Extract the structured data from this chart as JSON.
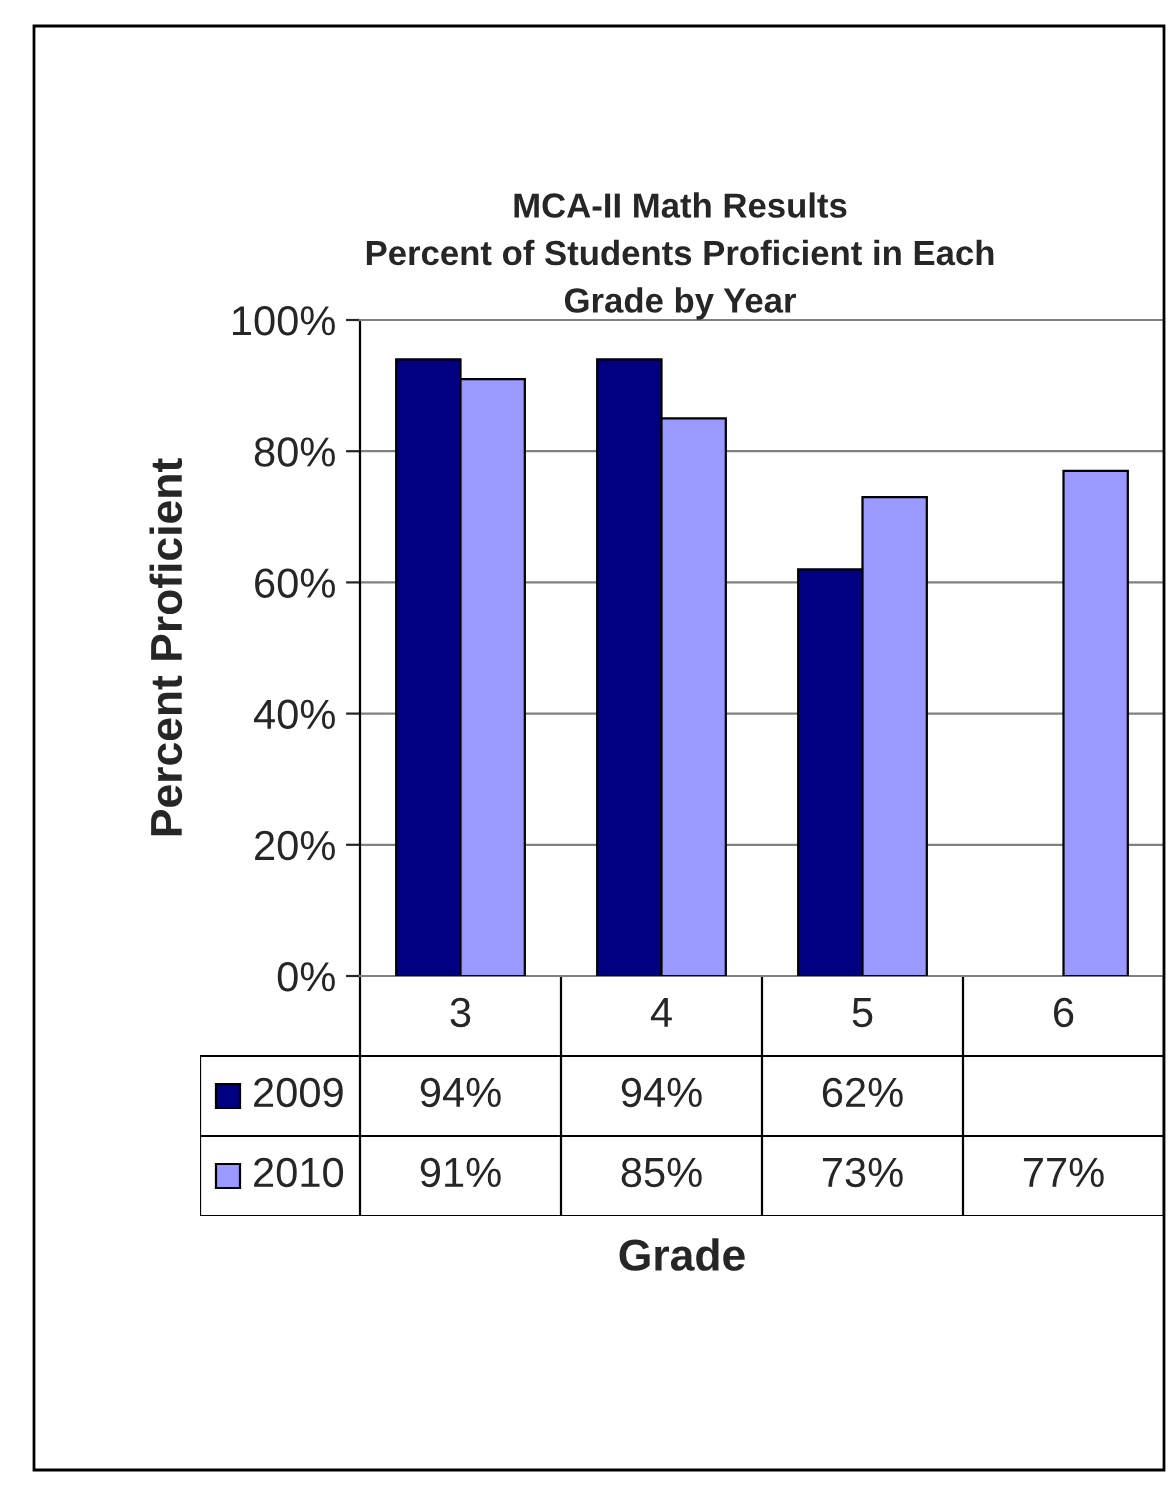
{
  "chart_data": {
    "type": "bar",
    "title": "MCA-II Math Results\nPercent of Students Proficient in Each\nGrade by Year",
    "xlabel": "Grade",
    "ylabel": "Percent Proficient",
    "categories": [
      "3",
      "4",
      "5",
      "6"
    ],
    "series": [
      {
        "name": "2009",
        "color": "#000080",
        "values": [
          94,
          94,
          62,
          null
        ],
        "value_labels": [
          "94%",
          "94%",
          "62%",
          null
        ]
      },
      {
        "name": "2010",
        "color": "#9999ff",
        "values": [
          91,
          85,
          73,
          77
        ],
        "value_labels": [
          "91%",
          "85%",
          "73%",
          "77%"
        ]
      }
    ],
    "ylim": [
      0,
      100
    ],
    "yticks": [
      {
        "value": 0,
        "label": "0%"
      },
      {
        "value": 20,
        "label": "20%"
      },
      {
        "value": 40,
        "label": "40%"
      },
      {
        "value": 60,
        "label": "60%"
      },
      {
        "value": 80,
        "label": "80%"
      },
      {
        "value": 100,
        "label": "100%"
      }
    ],
    "grid": "y",
    "legend": "bottom"
  }
}
